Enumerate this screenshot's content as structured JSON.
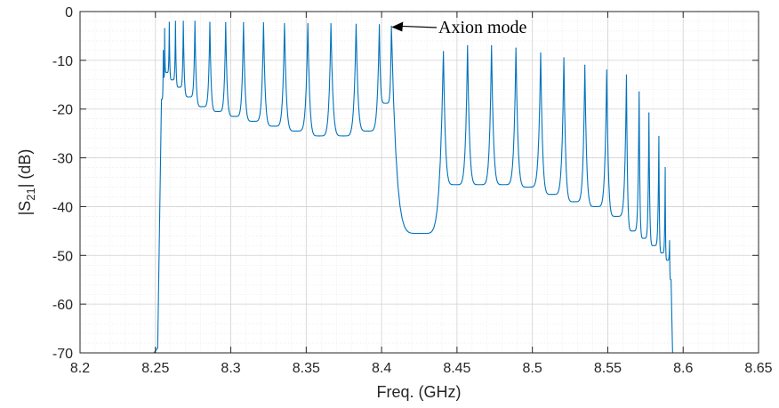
{
  "chart_data": {
    "type": "line",
    "xlabel": "Freq. (GHz)",
    "ylabel_main": "|S",
    "ylabel_sub": "21",
    "ylabel_tail": "| (dB)",
    "xlim": [
      8.2,
      8.65
    ],
    "ylim": [
      -70,
      0
    ],
    "xticks": [
      8.2,
      8.25,
      8.3,
      8.35,
      8.4,
      8.45,
      8.5,
      8.55,
      8.6,
      8.65
    ],
    "xtick_labels": [
      "8.2",
      "8.25",
      "8.3",
      "8.35",
      "8.4",
      "8.45",
      "8.5",
      "8.55",
      "8.6",
      "8.65"
    ],
    "yticks": [
      0,
      -10,
      -20,
      -30,
      -40,
      -50,
      -60,
      -70
    ],
    "ytick_labels": [
      "0",
      "-10",
      "-20",
      "-30",
      "-40",
      "-50",
      "-60",
      "-70"
    ],
    "grid": true,
    "minor_grid": true,
    "line_color": "#0072BD",
    "annotation": {
      "text": "Axion mode",
      "arrow_target": [
        8.406,
        -3
      ]
    },
    "series": [
      {
        "resonances": [
          [
            8.2552,
            -8.0
          ],
          [
            8.2561,
            -3.5
          ],
          [
            8.2592,
            -2.2
          ],
          [
            8.2633,
            -2.0
          ],
          [
            8.2685,
            -2.0
          ],
          [
            8.2762,
            -2.0
          ],
          [
            8.2861,
            -2.2
          ],
          [
            8.2966,
            -2.3
          ],
          [
            8.3084,
            -2.3
          ],
          [
            8.3217,
            -2.3
          ],
          [
            8.3356,
            -2.5
          ],
          [
            8.3511,
            -2.5
          ],
          [
            8.3664,
            -2.5
          ],
          [
            8.3831,
            -2.6
          ],
          [
            8.3985,
            -2.7
          ],
          [
            8.4065,
            -3.0
          ],
          [
            8.441,
            -8.2
          ],
          [
            8.457,
            -7.0
          ],
          [
            8.4729,
            -7.0
          ],
          [
            8.4891,
            -7.5
          ],
          [
            8.5055,
            -8.5
          ],
          [
            8.5209,
            -9.5
          ],
          [
            8.5348,
            -11.0
          ],
          [
            8.5493,
            -12.0
          ],
          [
            8.5624,
            -13.0
          ],
          [
            8.5708,
            -16.5
          ],
          [
            8.5773,
            -20.8
          ],
          [
            8.5839,
            -25.6
          ],
          [
            8.5881,
            -32.0
          ],
          [
            8.591,
            -47.0
          ]
        ],
        "valleys": [
          [
            8.2555,
            -13.5
          ],
          [
            8.2575,
            -12.5
          ],
          [
            8.2612,
            -14.0
          ],
          [
            8.2658,
            -15.5
          ],
          [
            8.2723,
            -17.5
          ],
          [
            8.2811,
            -19.5
          ],
          [
            8.2913,
            -20.5
          ],
          [
            8.3025,
            -21.5
          ],
          [
            8.315,
            -22.5
          ],
          [
            8.3286,
            -23.5
          ],
          [
            8.3433,
            -24.5
          ],
          [
            8.3587,
            -25.5
          ],
          [
            8.3747,
            -25.5
          ],
          [
            8.3908,
            -24.5
          ],
          [
            8.4028,
            -18.8
          ],
          [
            8.4265,
            -45.5
          ],
          [
            8.449,
            -35.5
          ],
          [
            8.465,
            -35.5
          ],
          [
            8.481,
            -35.5
          ],
          [
            8.4973,
            -36.0
          ],
          [
            8.5132,
            -37.5
          ],
          [
            8.5279,
            -39.0
          ],
          [
            8.5421,
            -40.0
          ],
          [
            8.5558,
            -42.0
          ],
          [
            8.5666,
            -45.0
          ],
          [
            8.574,
            -46.5
          ],
          [
            8.5806,
            -48.0
          ],
          [
            8.586,
            -49.5
          ],
          [
            8.5895,
            -51.0
          ]
        ],
        "cutoff_start": [
          [
            8.249,
            -70
          ],
          [
            8.2515,
            -69.0
          ],
          [
            8.254,
            -18.0
          ]
        ],
        "cutoff_end": [
          [
            8.592,
            -55.0
          ],
          [
            8.5925,
            -63.0
          ],
          [
            8.593,
            -70
          ]
        ]
      }
    ]
  }
}
